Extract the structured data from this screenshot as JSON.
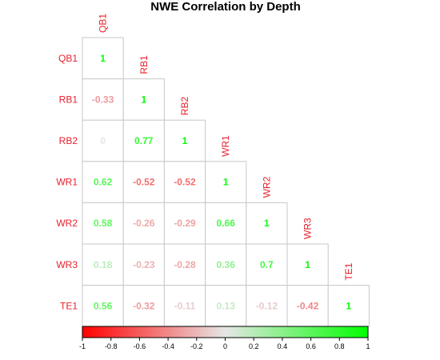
{
  "chart_data": {
    "type": "heatmap",
    "title": "NWE Correlation by Depth",
    "variables": [
      "QB1",
      "RB1",
      "RB2",
      "WR1",
      "WR2",
      "WR3",
      "TE1"
    ],
    "matrix": [
      [
        1,
        null,
        null,
        null,
        null,
        null,
        null
      ],
      [
        -0.33,
        1,
        null,
        null,
        null,
        null,
        null
      ],
      [
        0,
        0.77,
        1,
        null,
        null,
        null,
        null
      ],
      [
        0.62,
        -0.52,
        -0.52,
        1,
        null,
        null,
        null
      ],
      [
        0.58,
        -0.26,
        -0.29,
        0.66,
        1,
        null,
        null
      ],
      [
        0.18,
        -0.23,
        -0.28,
        0.36,
        0.7,
        1,
        null
      ],
      [
        0.56,
        -0.32,
        -0.11,
        0.13,
        -0.12,
        -0.42,
        1
      ]
    ],
    "value_labels": [
      [
        "1",
        null,
        null,
        null,
        null,
        null,
        null
      ],
      [
        "-0.33",
        "1",
        null,
        null,
        null,
        null,
        null
      ],
      [
        "0",
        "0.77",
        "1",
        null,
        null,
        null,
        null
      ],
      [
        "0.62",
        "-0.52",
        "-0.52",
        "1",
        null,
        null,
        null
      ],
      [
        "0.58",
        "-0.26",
        "-0.29",
        "0.66",
        "1",
        null,
        null
      ],
      [
        "0.18",
        "-0.23",
        "-0.28",
        "0.36",
        "0.7",
        "1",
        null
      ],
      [
        "0.56",
        "-0.32",
        "-0.11",
        "0.13",
        "-0.12",
        "-0.42",
        "1"
      ]
    ],
    "triangle": "lower",
    "color_scale": {
      "range": [
        -1,
        1
      ],
      "low_color": "#ff0000",
      "mid_color": "#e6e6e6",
      "high_color": "#00ff00",
      "ticks": [
        -1,
        -0.8,
        -0.6,
        -0.4,
        -0.2,
        0,
        0.2,
        0.4,
        0.6,
        0.8,
        1
      ],
      "tick_labels": [
        "-1",
        "-0.8",
        "-0.6",
        "-0.4",
        "-0.2",
        "0",
        "0.2",
        "0.4",
        "0.6",
        "0.8",
        "1"
      ],
      "position": "bottom"
    },
    "label_color": "#e8202c",
    "cell_border_color": "#c8c8c8"
  }
}
